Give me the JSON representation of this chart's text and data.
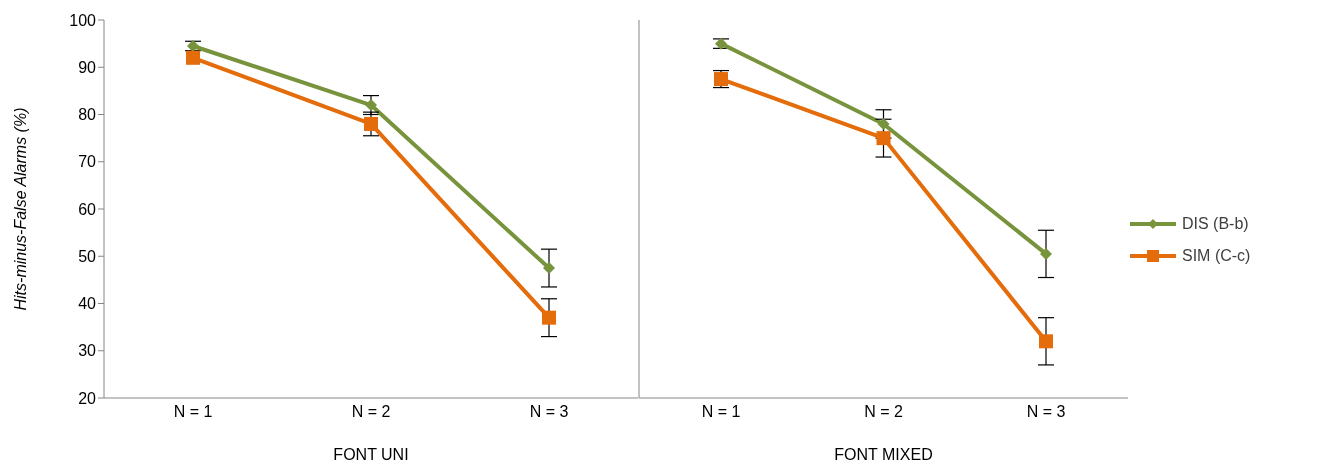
{
  "chart_data": [
    {
      "type": "line",
      "xlabel": "FONT UNI",
      "ylabel": "Hits-minus-False Alarms (%)",
      "categories": [
        "N = 1",
        "N = 2",
        "N = 3"
      ],
      "series": [
        {
          "color": "#77933c",
          "marker": "diamond",
          "values": [
            94.5,
            82,
            47.5
          ],
          "errors": [
            1,
            2,
            4
          ]
        },
        {
          "color": "#e46c0a",
          "marker": "square",
          "values": [
            92,
            78,
            37
          ],
          "errors": [
            null,
            2.5,
            4
          ]
        }
      ],
      "ylim": [
        20,
        100
      ],
      "yticks": [
        20,
        30,
        40,
        50,
        60,
        70,
        80,
        90,
        100
      ],
      "grid": false,
      "legend": false
    },
    {
      "type": "line",
      "xlabel": "FONT MIXED",
      "categories": [
        "N = 1",
        "N = 2",
        "N = 3"
      ],
      "series": [
        {
          "name": "DIS (B-b)",
          "color": "#77933c",
          "marker": "diamond",
          "values": [
            95,
            78,
            50.5
          ],
          "errors": [
            1,
            3,
            5
          ]
        },
        {
          "name": "SIM (C-c)",
          "color": "#e46c0a",
          "marker": "square",
          "values": [
            87.5,
            75,
            32
          ],
          "errors": [
            1.8,
            4,
            5
          ]
        }
      ],
      "ylim": [
        20,
        100
      ],
      "yticks": [
        20,
        30,
        40,
        50,
        60,
        70,
        80,
        90,
        100
      ],
      "grid": false,
      "legend": "right",
      "tick_labels": "x"
    }
  ]
}
